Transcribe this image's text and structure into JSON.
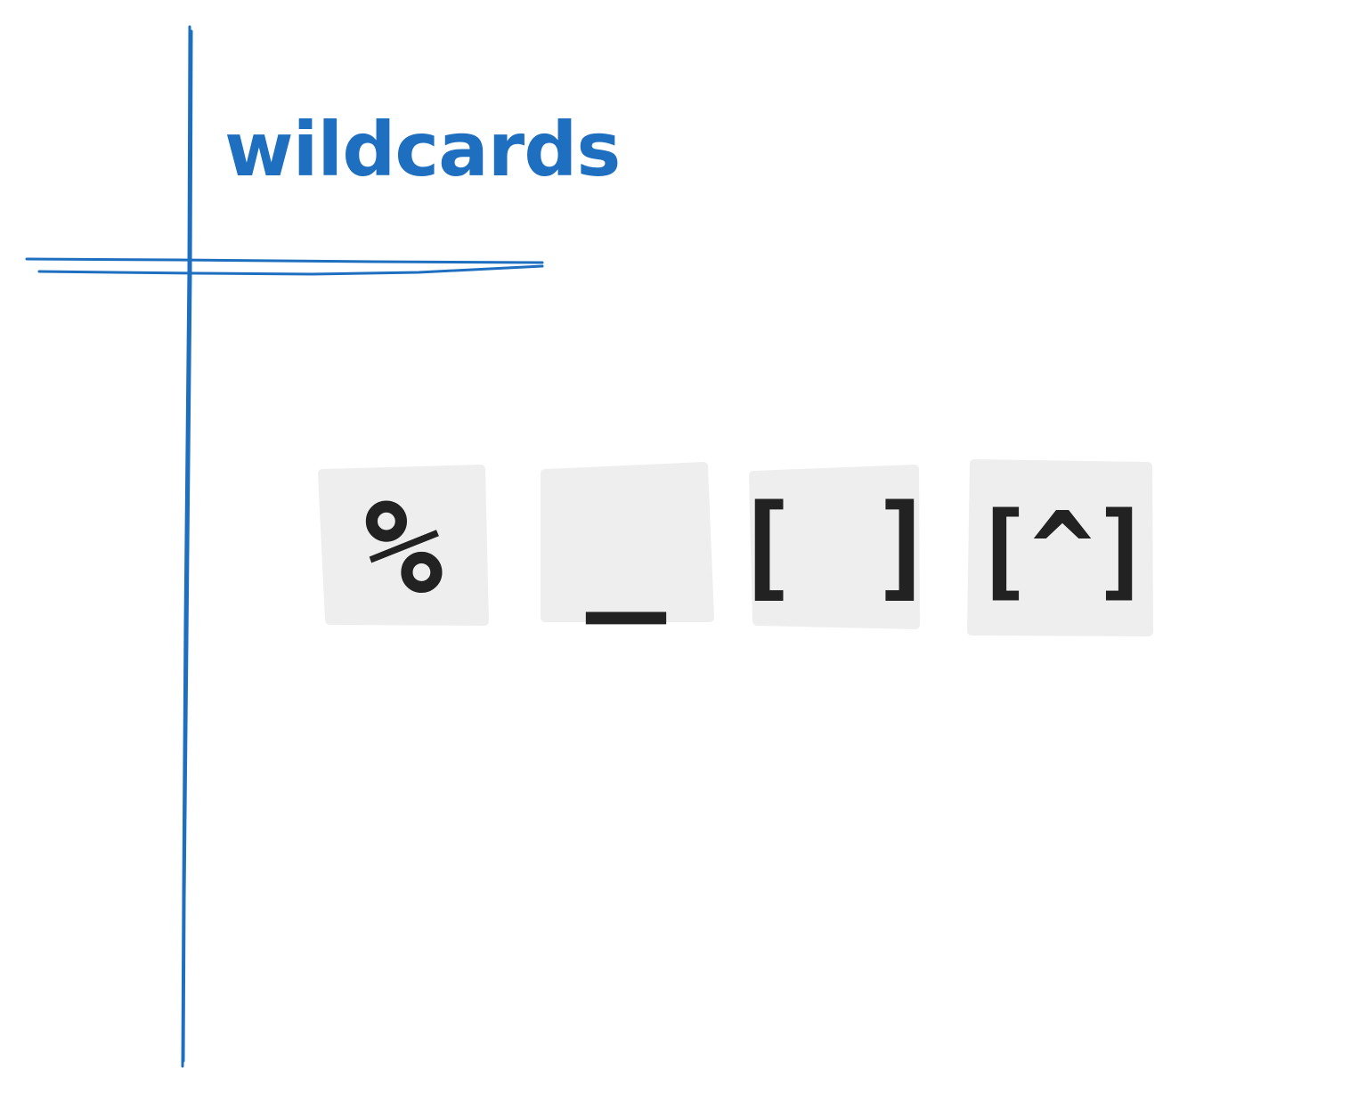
{
  "title": "wildcards",
  "colors": {
    "accent": "#1e6fc0",
    "tile_fill": "#eeeeee",
    "tile_text": "#222222"
  },
  "wildcards": [
    {
      "symbol": "%"
    },
    {
      "symbol": "_"
    },
    {
      "symbol": "[ ]"
    },
    {
      "symbol": "[^]"
    }
  ]
}
